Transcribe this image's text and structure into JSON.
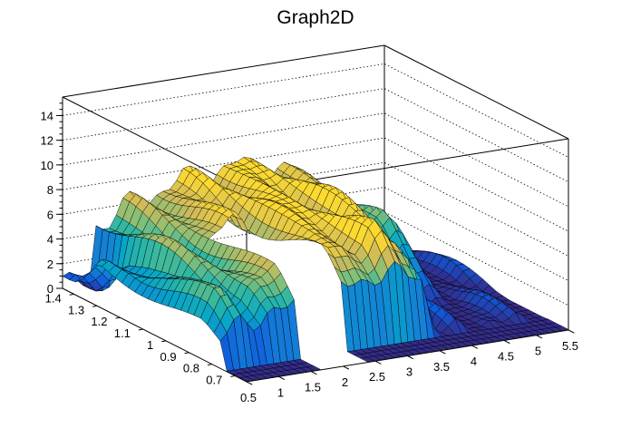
{
  "chart_data": {
    "type": "surface",
    "title": "Graph2D",
    "xlabel": "",
    "ylabel": "",
    "zlabel": "",
    "x_ticks": [
      "0.5",
      "1",
      "1.5",
      "2",
      "2.5",
      "3",
      "3.5",
      "4",
      "4.5",
      "5",
      "5.5"
    ],
    "x_tick_values": [
      0.5,
      1,
      1.5,
      2,
      2.5,
      3,
      3.5,
      4,
      4.5,
      5,
      5.5
    ],
    "y_ticks": [
      "0.7",
      "0.8",
      "0.9",
      "1",
      "1.1",
      "1.2",
      "1.3",
      "1.4"
    ],
    "y_tick_values": [
      0.7,
      0.8,
      0.9,
      1.0,
      1.1,
      1.2,
      1.3,
      1.4
    ],
    "z_ticks": [
      "0",
      "2",
      "4",
      "6",
      "8",
      "10",
      "12",
      "14"
    ],
    "z_tick_values": [
      0,
      2,
      4,
      6,
      8,
      10,
      12,
      14
    ],
    "xlim": [
      0.5,
      5.5
    ],
    "ylim": [
      0.65,
      1.45
    ],
    "zlim": [
      0,
      15.5
    ],
    "colormap": "parula",
    "grid": true,
    "back_plane_profile": {
      "x": [
        0.5,
        0.8,
        1.1,
        1.4,
        1.7,
        2.0,
        2.3,
        2.6,
        2.9,
        3.2,
        3.5,
        3.8,
        4.1,
        4.4,
        4.7,
        5.0,
        5.5
      ],
      "z": [
        3.3,
        4.8,
        5.0,
        5.3,
        6.2,
        6.8,
        7.0,
        7.3,
        7.5,
        7.6,
        7.4,
        7.5,
        6.8,
        5.5,
        3.2,
        0.3,
        0.0
      ]
    },
    "front_wall_profile": {
      "y": [
        1.4,
        1.35,
        1.3,
        1.25,
        1.2,
        1.15,
        1.1,
        1.05,
        1.0,
        0.95,
        0.9,
        0.85,
        0.8,
        0.75,
        0.7,
        0.65
      ],
      "z": [
        0.1,
        1.2,
        3.2,
        3.5,
        3.8,
        4.0,
        4.3,
        4.6,
        4.9,
        5.1,
        5.3,
        5.5,
        5.8,
        6.0,
        6.2,
        6.5
      ]
    },
    "gap_region": {
      "x_range": [
        1.6,
        2.35
      ],
      "z_at_edges": [
        7.2,
        6.0
      ]
    },
    "flat_region": {
      "x_range": [
        3.6,
        5.5
      ],
      "z": 0.1
    }
  }
}
